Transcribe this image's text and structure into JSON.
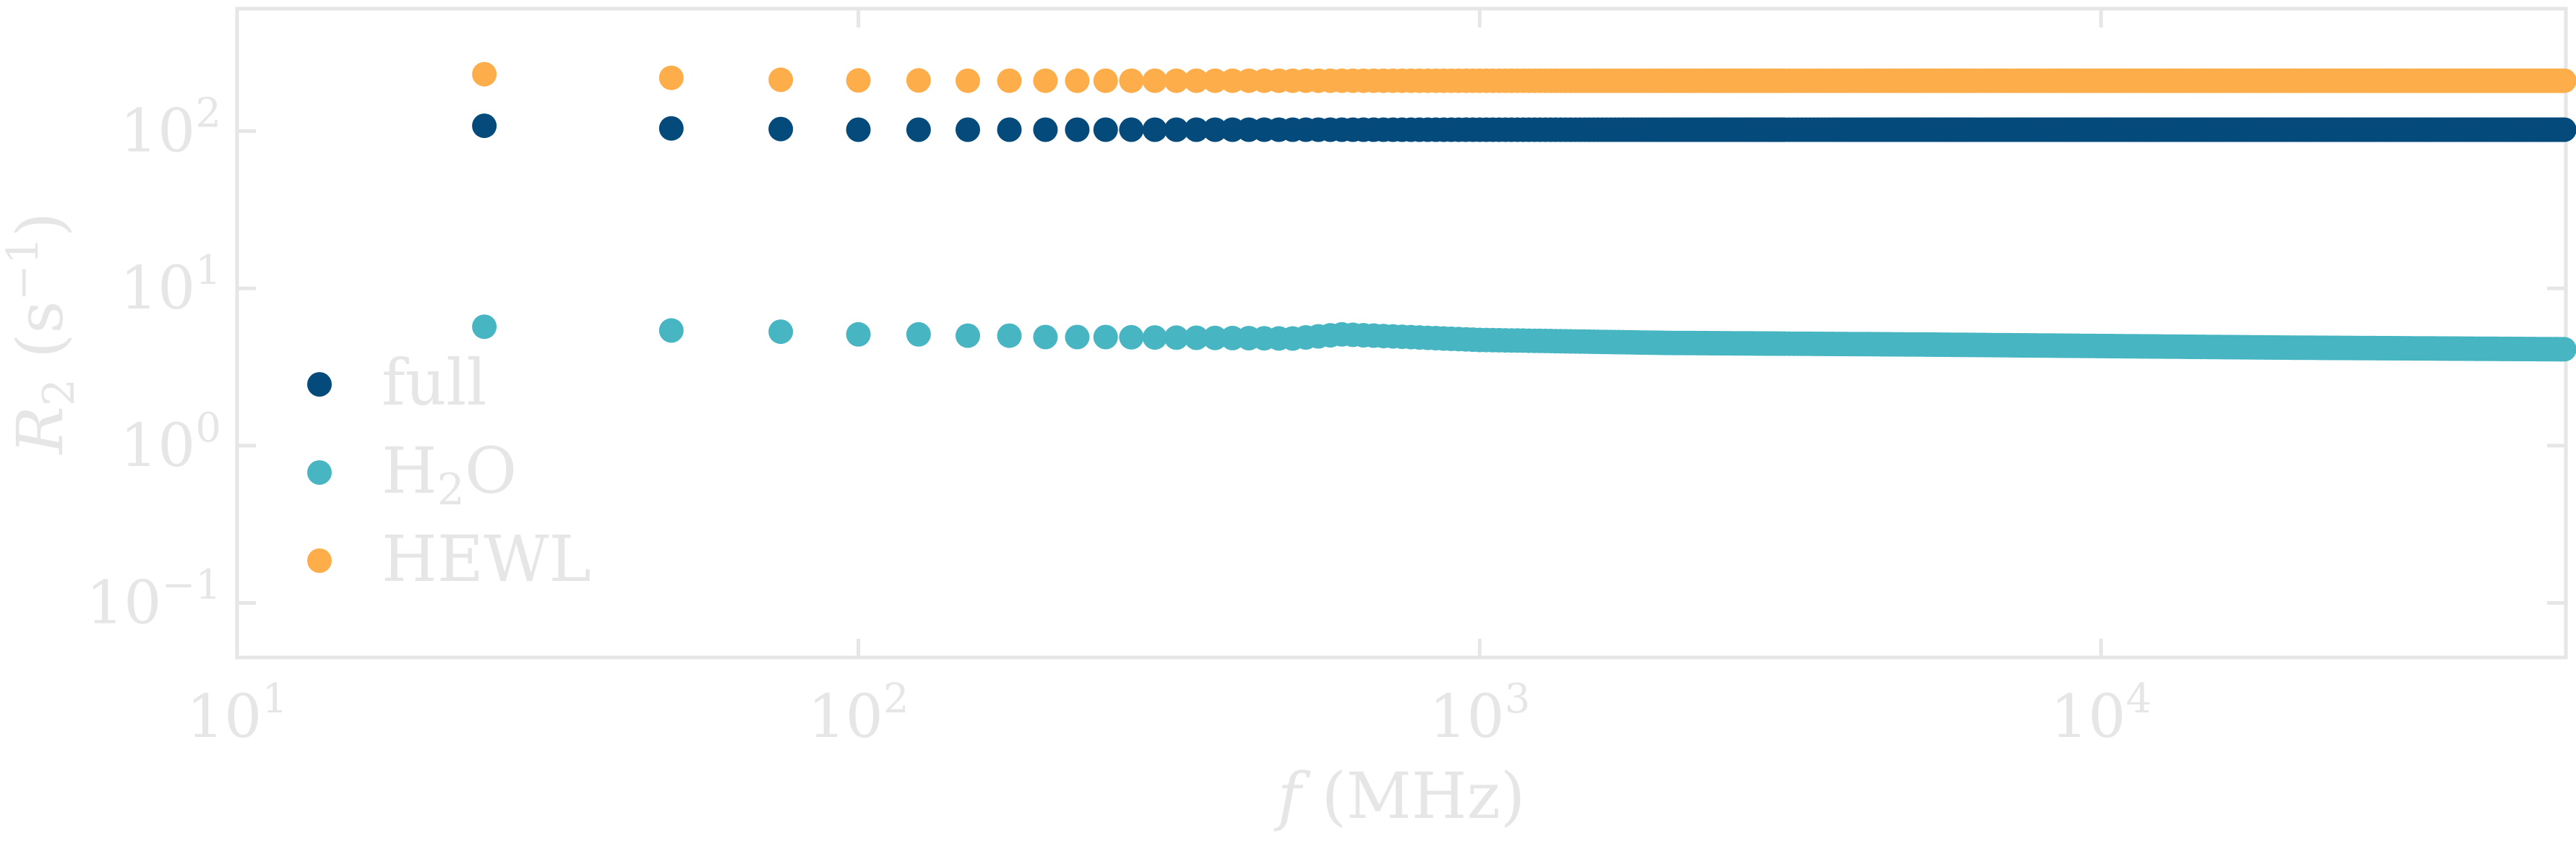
{
  "chart_data": {
    "type": "scatter",
    "xscale": "log",
    "yscale": "log",
    "xlim": [
      10,
      56000
    ],
    "ylim": [
      0.045,
      600
    ],
    "xlabel": "f (MHz)",
    "ylabel": "R2 (s−1)",
    "x_ticks": [
      {
        "base": "10",
        "exp": "1"
      },
      {
        "base": "10",
        "exp": "2"
      },
      {
        "base": "10",
        "exp": "3"
      },
      {
        "base": "10",
        "exp": "4"
      }
    ],
    "y_ticks": [
      {
        "base": "10",
        "exp": "−1"
      },
      {
        "base": "10",
        "exp": "0"
      },
      {
        "base": "10",
        "exp": "1"
      },
      {
        "base": "10",
        "exp": "2"
      }
    ],
    "legend_position": "left-center",
    "series": [
      {
        "name": "full",
        "color": "#044a7a",
        "x": [
          25,
          50,
          75,
          100,
          125,
          150,
          175,
          200,
          250,
          500,
          1000,
          5000,
          10000,
          20000,
          56000
        ],
        "y": [
          108,
          104,
          103,
          102,
          102,
          102,
          102,
          102,
          102,
          102,
          102,
          102,
          102,
          102,
          102
        ]
      },
      {
        "name": "H₂O",
        "color": "#47b5c2",
        "x": [
          25,
          50,
          75,
          100,
          125,
          150,
          175,
          200,
          250,
          500,
          600,
          1000,
          2000,
          5000,
          10000,
          20000,
          56000
        ],
        "y": [
          5.7,
          5.4,
          5.3,
          5.1,
          5.1,
          5.0,
          5.0,
          4.9,
          4.9,
          4.8,
          5.1,
          4.7,
          4.5,
          4.4,
          4.3,
          4.2,
          4.1
        ]
      },
      {
        "name": "HEWL",
        "color": "#fdae4b",
        "x": [
          25,
          50,
          75,
          100,
          125,
          150,
          175,
          200,
          250,
          500,
          1000,
          5000,
          10000,
          20000,
          56000
        ],
        "y": [
          230,
          218,
          212,
          210,
          210,
          209,
          209,
          209,
          209,
          209,
          209,
          209,
          209,
          209,
          209
        ]
      }
    ]
  }
}
